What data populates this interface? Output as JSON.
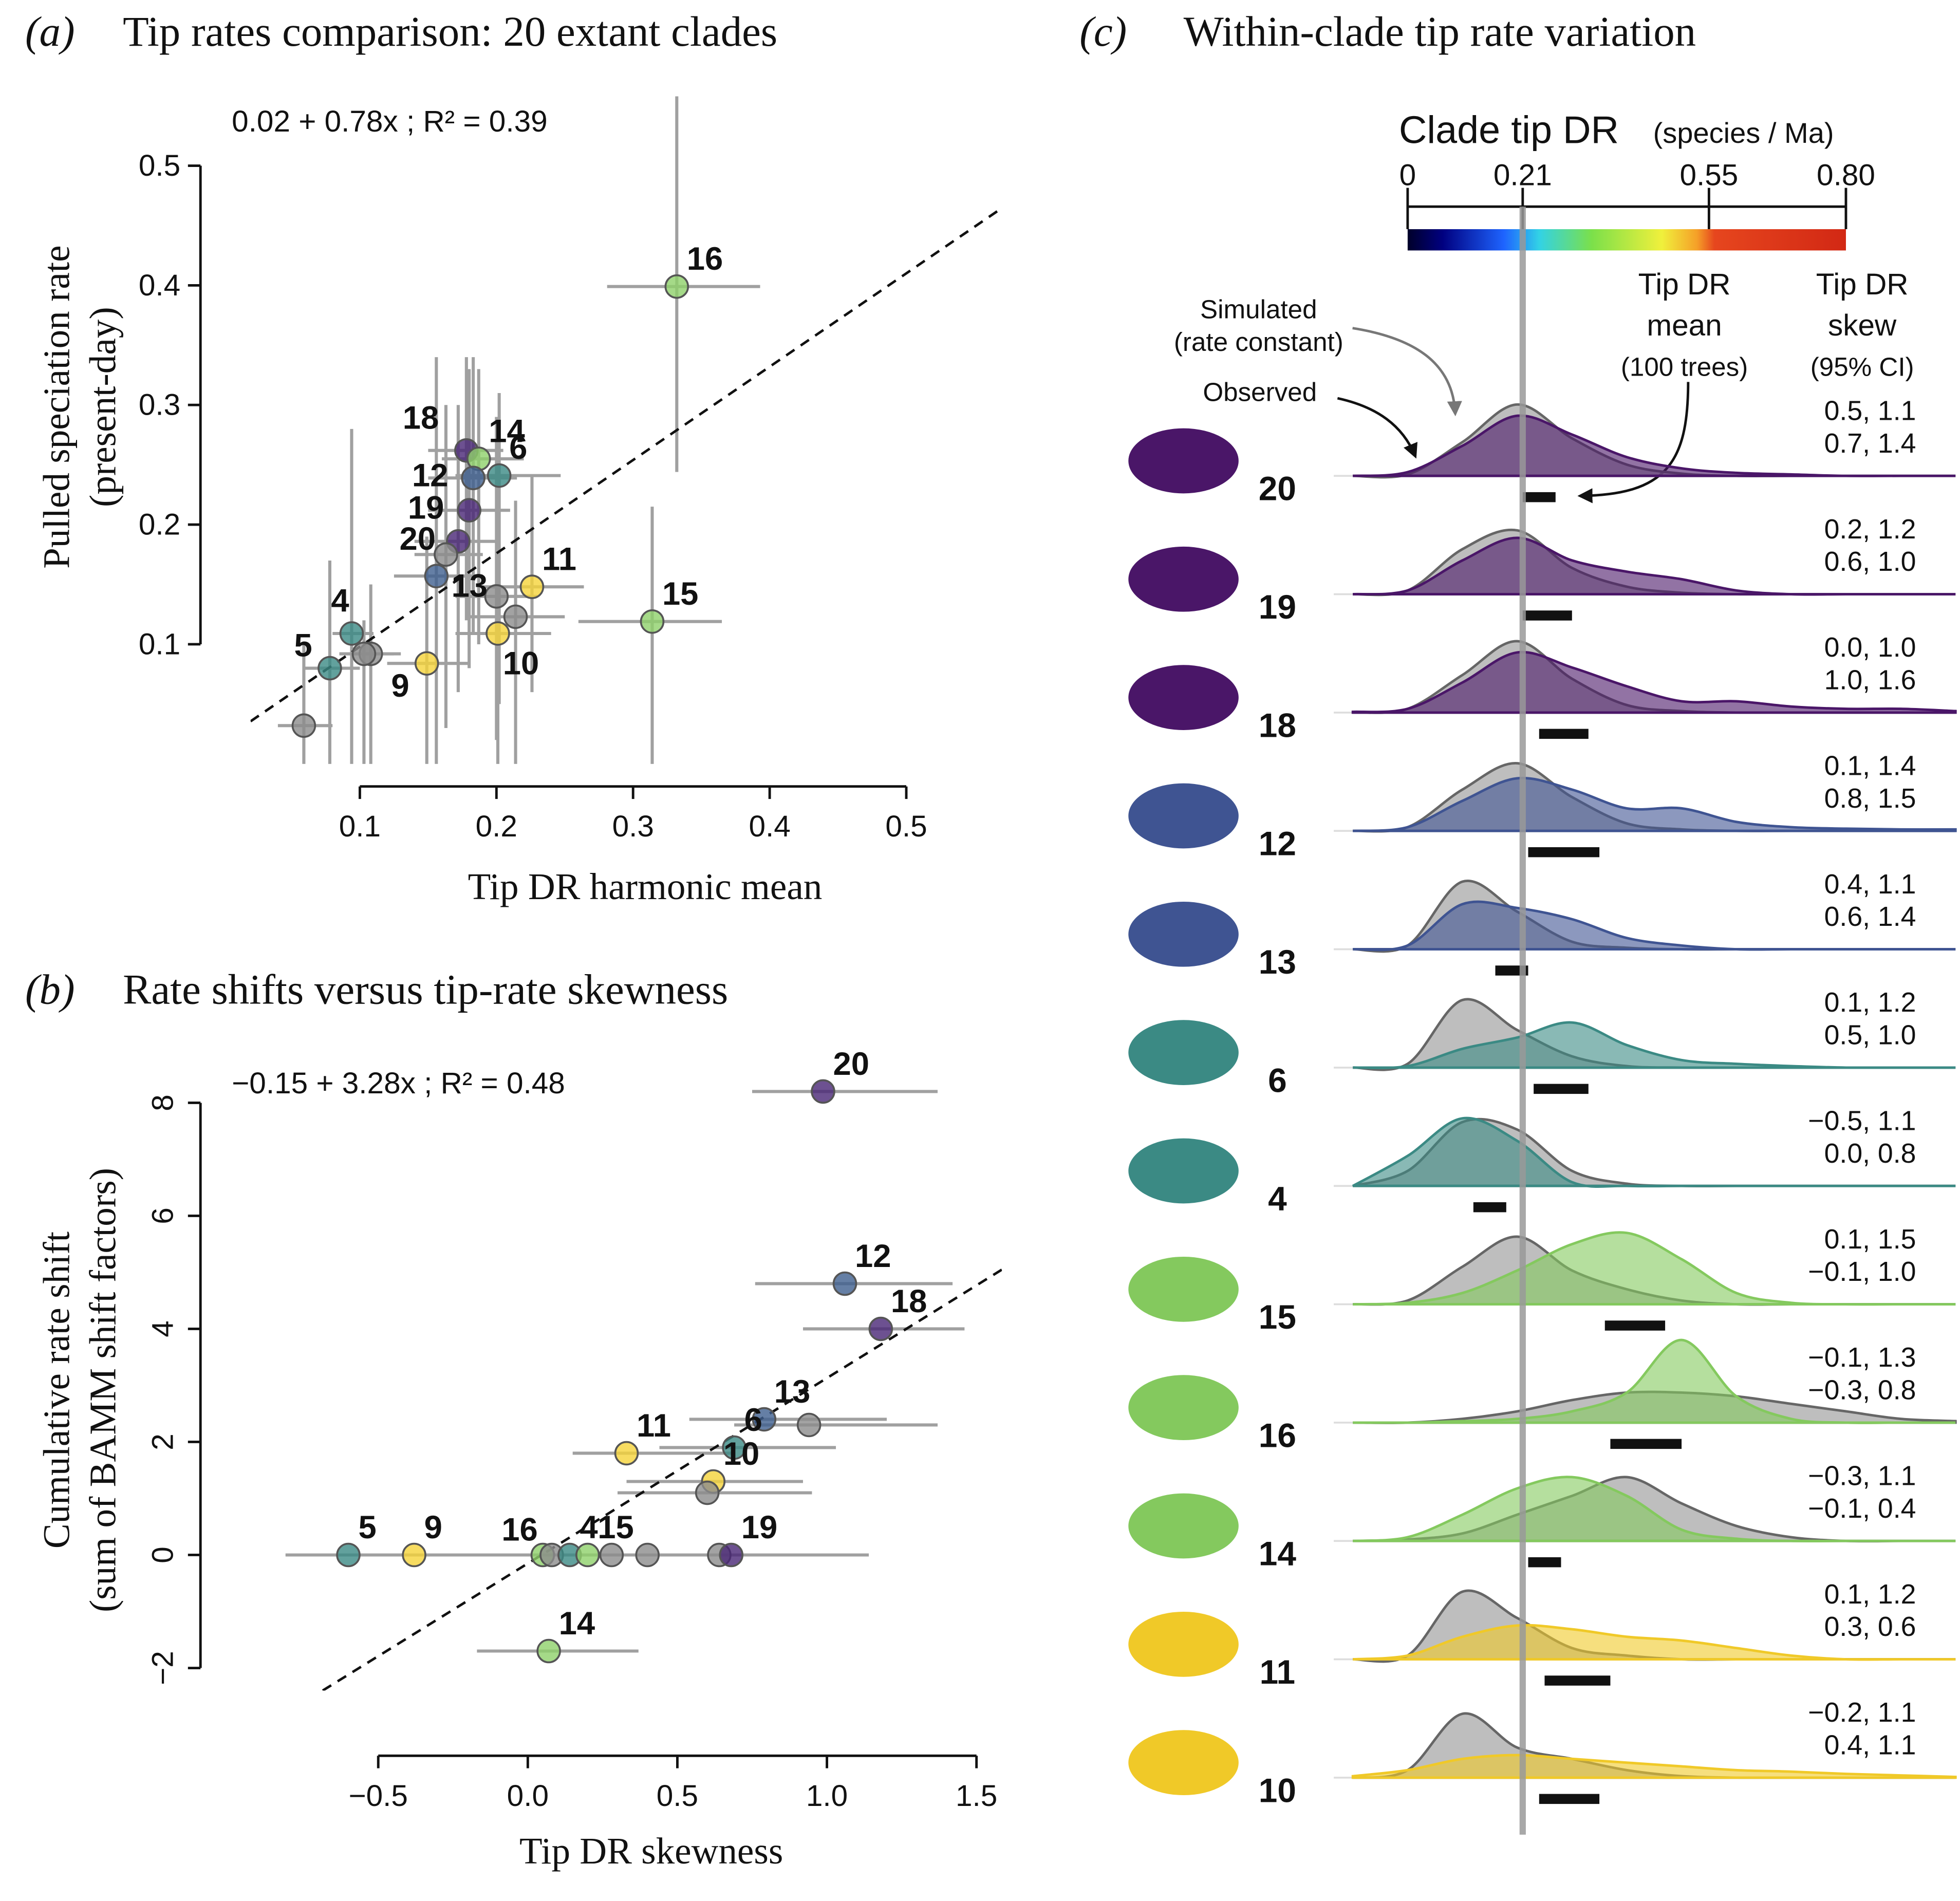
{
  "chart_data": [
    {
      "type": "scatter",
      "panel_label": "(a)",
      "title": "Tip rates comparison: 20 extant clades",
      "annotation": "0.02 + 0.78x ; R² = 0.39",
      "xlabel": "Tip DR harmonic mean",
      "ylabel": [
        "Pulled speciation rate",
        "(present-day)"
      ],
      "xlim": [
        0.02,
        0.57
      ],
      "ylim": [
        0,
        0.56
      ],
      "xticks": [
        0.1,
        0.2,
        0.3,
        0.4,
        0.5
      ],
      "yticks": [
        0.1,
        0.2,
        0.3,
        0.4,
        0.5
      ],
      "fit": {
        "intercept": 0.02,
        "slope": 0.78
      },
      "points": {
        "labels": [
          "16",
          "18",
          "14",
          "6",
          "12",
          "19",
          "20",
          null,
          "13",
          "11",
          null,
          null,
          "15",
          "10",
          "4",
          null,
          null,
          "9",
          "5",
          null
        ],
        "x": [
          0.332,
          0.178,
          0.187,
          0.202,
          0.183,
          0.18,
          0.172,
          0.163,
          0.156,
          0.226,
          0.2,
          0.214,
          0.314,
          0.201,
          0.094,
          0.108,
          0.103,
          0.149,
          0.078,
          0.059
        ],
        "y": [
          0.399,
          0.262,
          0.255,
          0.241,
          0.239,
          0.212,
          0.186,
          0.175,
          0.157,
          0.148,
          0.14,
          0.123,
          0.119,
          0.109,
          0.109,
          0.092,
          0.092,
          0.084,
          0.08,
          0.032
        ],
        "xerr_low": [
          0.281,
          0.15,
          0.16,
          0.17,
          0.15,
          0.15,
          0.14,
          0.14,
          0.125,
          0.19,
          0.17,
          0.18,
          0.26,
          0.17,
          0.08,
          0.09,
          0.085,
          0.12,
          0.06,
          0.04
        ],
        "xerr_high": [
          0.393,
          0.205,
          0.22,
          0.247,
          0.215,
          0.21,
          0.2,
          0.19,
          0.19,
          0.264,
          0.23,
          0.25,
          0.365,
          0.24,
          0.11,
          0.13,
          0.125,
          0.18,
          0.1,
          0.08
        ],
        "yerr_low": [
          0.244,
          0.12,
          0.1,
          0.05,
          0.11,
          0.08,
          0.06,
          0.03,
          0.0,
          0.06,
          0.02,
          0.0,
          0.0,
          0.0,
          0.0,
          0.0,
          0.0,
          0.0,
          0.0,
          0.0
        ],
        "yerr_high": [
          0.558,
          0.34,
          0.33,
          0.31,
          0.34,
          0.33,
          0.3,
          0.3,
          0.34,
          0.24,
          0.29,
          0.22,
          0.215,
          0.24,
          0.28,
          0.15,
          0.12,
          0.19,
          0.17,
          0.1
        ],
        "colors": [
          "#8fd16a",
          "#482576",
          "#8fd16a",
          "#3b8a84",
          "#3f5f8f",
          "#482576",
          "#482576",
          "#8c8c8c",
          "#3f5f8f",
          "#f5d33a",
          "#8c8c8c",
          "#8c8c8c",
          "#8fd16a",
          "#f5d33a",
          "#3b8a84",
          "#8c8c8c",
          "#8c8c8c",
          "#f5d33a",
          "#3b8a84",
          "#8c8c8c"
        ]
      }
    },
    {
      "type": "scatter",
      "panel_label": "(b)",
      "title": "Rate shifts versus tip-rate skewness",
      "annotation": "−0.15 + 3.28x ; R² = 0.48",
      "xlabel": "Tip DR skewness",
      "ylabel": [
        "Cumulative rate shift",
        "(sum of BAMM shift factors)"
      ],
      "xlim": [
        -0.885,
        1.585
      ],
      "ylim": [
        -2.4,
        8.9
      ],
      "xticks": [
        {
          "value": -0.5,
          "label": "−0.5"
        },
        {
          "value": 0,
          "label": "0.0"
        },
        0.5,
        {
          "value": 1,
          "label": "1.0"
        },
        1.5
      ],
      "yticks": [
        {
          "value": -2,
          "label": "−2"
        },
        0,
        2,
        4,
        6,
        8
      ],
      "fit": {
        "intercept": -0.15,
        "slope": 3.28
      },
      "points": {
        "labels": [
          "20",
          "12",
          "18",
          "13",
          null,
          "11",
          "6",
          "10",
          null,
          "5",
          "9",
          "16",
          null,
          "4",
          "15",
          null,
          null,
          null,
          "19",
          "14"
        ],
        "x": [
          0.987,
          1.06,
          1.18,
          0.79,
          0.94,
          0.33,
          0.69,
          0.62,
          0.6,
          -0.6,
          -0.38,
          0.05,
          0.08,
          0.14,
          0.2,
          0.28,
          0.4,
          0.64,
          0.68,
          0.07
        ],
        "y": [
          8.2,
          4.8,
          4.0,
          2.4,
          2.3,
          1.8,
          1.9,
          1.3,
          1.1,
          0,
          0,
          0,
          0,
          0,
          0,
          0,
          0,
          0,
          0,
          -1.7
        ],
        "xerr_low": [
          0.75,
          0.76,
          0.92,
          0.54,
          0.69,
          0.15,
          0.44,
          0.33,
          0.3,
          -0.81,
          -0.6,
          -0.25,
          -0.2,
          -0.1,
          -0.05,
          0.0,
          0.15,
          0.4,
          0.4,
          -0.17
        ],
        "xerr_high": [
          1.37,
          1.42,
          1.46,
          1.2,
          1.37,
          0.69,
          1.03,
          0.92,
          0.95,
          -0.3,
          -0.1,
          0.3,
          0.35,
          0.4,
          0.5,
          0.6,
          0.7,
          0.95,
          1.14,
          0.37
        ],
        "colors": [
          "#482576",
          "#3f5f8f",
          "#482576",
          "#3f5f8f",
          "#8c8c8c",
          "#f5d33a",
          "#3b8a84",
          "#f5d33a",
          "#8c8c8c",
          "#3b8a84",
          "#f5d33a",
          "#8fd16a",
          "#8c8c8c",
          "#3b8a84",
          "#8fd16a",
          "#8c8c8c",
          "#8c8c8c",
          "#8c8c8c",
          "#482576",
          "#8fd16a"
        ]
      }
    },
    {
      "type": "ridgeline",
      "panel_label": "(c)",
      "title": "Within-clade tip rate variation",
      "colorbar_title": "Clade tip DR",
      "colorbar_unit": "(species / Ma)",
      "colorbar_lim": [
        0,
        0.8
      ],
      "colorbar_ticks": [
        0,
        0.21,
        0.55,
        {
          "value": 0.8,
          "label": "0.80"
        }
      ],
      "annotations": {
        "simulated": [
          "Simulated",
          "(rate constant)"
        ],
        "observed": "Observed",
        "mean": [
          "Tip DR",
          "mean",
          "(100 trees)"
        ],
        "skew": [
          "Tip DR",
          "skew",
          "(95% CI)"
        ]
      },
      "grid_x": [
        -0.1,
        0,
        0.1,
        0.2,
        0.3,
        0.4,
        0.5,
        0.6,
        0.7,
        0.8,
        0.9,
        1.0
      ],
      "clades": [
        {
          "label": "20",
          "color": "#4a1668",
          "simulated": [
            0,
            0.02,
            0.45,
            0.95,
            0.5,
            0.15,
            0.03,
            0,
            0,
            0,
            0,
            0
          ],
          "observed": [
            0,
            0.05,
            0.4,
            0.8,
            0.55,
            0.25,
            0.1,
            0.04,
            0.02,
            0,
            0,
            0
          ],
          "skew_simulated": "0.5, 1.1",
          "skew_observed": "0.7, 1.4",
          "mean_range": [
            0.21,
            0.27
          ]
        },
        {
          "label": "19",
          "color": "#4a1668",
          "simulated": [
            0,
            0.05,
            0.6,
            0.85,
            0.35,
            0.1,
            0.02,
            0,
            0,
            0,
            0,
            0
          ],
          "observed": [
            0,
            0.05,
            0.45,
            0.75,
            0.45,
            0.3,
            0.2,
            0.05,
            0,
            0,
            0,
            0
          ],
          "skew_simulated": "0.2, 1.2",
          "skew_observed": "0.6, 1.0",
          "mean_range": [
            0.21,
            0.3
          ]
        },
        {
          "label": "18",
          "color": "#4a1668",
          "simulated": [
            0,
            0.05,
            0.5,
            0.95,
            0.45,
            0.1,
            0.02,
            0,
            0,
            0,
            0,
            0
          ],
          "observed": [
            0.01,
            0.05,
            0.4,
            0.8,
            0.6,
            0.35,
            0.15,
            0.15,
            0.08,
            0.05,
            0.05,
            0.02
          ],
          "skew_simulated": "0.0, 1.0",
          "skew_observed": "1.0, 1.6",
          "mean_range": [
            0.24,
            0.33
          ]
        },
        {
          "label": "12",
          "color": "#3f5492",
          "simulated": [
            0,
            0.05,
            0.55,
            0.9,
            0.45,
            0.1,
            0.02,
            0,
            0,
            0,
            0,
            0
          ],
          "observed": [
            0,
            0.05,
            0.4,
            0.7,
            0.55,
            0.3,
            0.3,
            0.12,
            0.05,
            0.03,
            0.02,
            0.02
          ],
          "skew_simulated": "0.1, 1.4",
          "skew_observed": "0.8, 1.5",
          "mean_range": [
            0.22,
            0.35
          ]
        },
        {
          "label": "13",
          "color": "#3f5492",
          "simulated": [
            0,
            0.05,
            0.9,
            0.5,
            0.1,
            0.02,
            0,
            0,
            0,
            0,
            0,
            0
          ],
          "observed": [
            0,
            0.05,
            0.6,
            0.55,
            0.4,
            0.15,
            0.05,
            0,
            0,
            0,
            0,
            0
          ],
          "skew_simulated": "0.4, 1.1",
          "skew_observed": "0.6, 1.4",
          "mean_range": [
            0.16,
            0.22
          ]
        },
        {
          "label": "6",
          "color": "#3b8a84",
          "simulated": [
            0,
            0.05,
            0.9,
            0.5,
            0.15,
            0.02,
            0,
            0,
            0,
            0,
            0,
            0
          ],
          "observed": [
            0,
            0.02,
            0.25,
            0.4,
            0.6,
            0.3,
            0.1,
            0.05,
            0.02,
            0,
            0,
            0
          ],
          "skew_simulated": "0.1, 1.2",
          "skew_observed": "0.5, 1.0",
          "mean_range": [
            0.23,
            0.33
          ]
        },
        {
          "label": "4",
          "color": "#3b8a84",
          "simulated": [
            0,
            0.2,
            0.85,
            0.75,
            0.2,
            0.03,
            0,
            0,
            0,
            0,
            0,
            0
          ],
          "observed": [
            0,
            0.4,
            0.9,
            0.6,
            0.05,
            0,
            0,
            0,
            0,
            0,
            0,
            0
          ],
          "skew_simulated": "−0.5, 1.1",
          "skew_observed": "0.0, 0.8",
          "mean_range": [
            0.12,
            0.18
          ]
        },
        {
          "label": "15",
          "color": "#84c95e",
          "simulated": [
            0,
            0.05,
            0.5,
            0.9,
            0.45,
            0.2,
            0.05,
            0,
            0,
            0,
            0,
            0
          ],
          "observed": [
            0,
            0.02,
            0.15,
            0.45,
            0.8,
            0.95,
            0.6,
            0.15,
            0.02,
            0,
            0,
            0
          ],
          "skew_simulated": "0.1, 1.5",
          "skew_observed": "−0.1, 1.0",
          "mean_range": [
            0.36,
            0.47
          ]
        },
        {
          "label": "16",
          "color": "#84c95e",
          "simulated": [
            0,
            0,
            0.05,
            0.15,
            0.3,
            0.4,
            0.4,
            0.35,
            0.25,
            0.15,
            0.05,
            0.02
          ],
          "observed": [
            0,
            0,
            0.02,
            0.05,
            0.15,
            0.4,
            1.1,
            0.35,
            0.05,
            0,
            0,
            0
          ],
          "skew_simulated": "−0.1, 1.3",
          "skew_observed": "−0.3, 0.8",
          "mean_range": [
            0.37,
            0.5
          ]
        },
        {
          "label": "14",
          "color": "#84c95e",
          "simulated": [
            0,
            0.02,
            0.1,
            0.35,
            0.6,
            0.85,
            0.5,
            0.2,
            0.05,
            0,
            0,
            0
          ],
          "observed": [
            0,
            0.05,
            0.35,
            0.7,
            0.85,
            0.6,
            0.15,
            0.03,
            0,
            0,
            0,
            0
          ],
          "skew_simulated": "−0.3, 1.1",
          "skew_observed": "−0.1, 0.4",
          "mean_range": [
            0.22,
            0.28
          ]
        },
        {
          "label": "11",
          "color": "#f0c928",
          "simulated": [
            0,
            0.05,
            0.9,
            0.55,
            0.15,
            0.05,
            0,
            0,
            0,
            0,
            0,
            0
          ],
          "observed": [
            0,
            0.05,
            0.3,
            0.45,
            0.4,
            0.3,
            0.25,
            0.15,
            0.05,
            0,
            0,
            0
          ],
          "skew_simulated": "0.1, 1.2",
          "skew_observed": "0.3, 0.6",
          "mean_range": [
            0.25,
            0.37
          ]
        },
        {
          "label": "10",
          "color": "#f0c928",
          "simulated": [
            0,
            0.1,
            0.85,
            0.4,
            0.25,
            0.1,
            0.02,
            0,
            0,
            0,
            0,
            0
          ],
          "observed": [
            0.02,
            0.1,
            0.25,
            0.3,
            0.25,
            0.2,
            0.15,
            0.1,
            0.08,
            0.05,
            0.03,
            0.01
          ],
          "skew_simulated": "−0.2, 1.1",
          "skew_observed": "0.4, 1.1",
          "mean_range": [
            0.24,
            0.35
          ]
        }
      ]
    }
  ]
}
